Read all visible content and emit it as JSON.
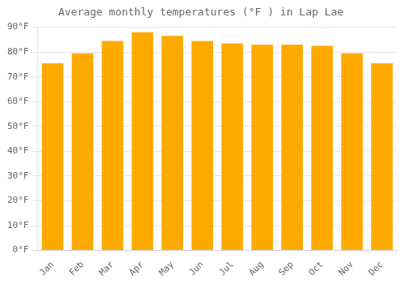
{
  "chart_data": {
    "type": "bar",
    "title": "Average monthly temperatures (°F ) in Lap Lae",
    "categories": [
      "Jan",
      "Feb",
      "Mar",
      "Apr",
      "May",
      "Jun",
      "Jul",
      "Aug",
      "Sep",
      "Oct",
      "Nov",
      "Dec"
    ],
    "values": [
      75.5,
      79.5,
      84.5,
      88.0,
      86.5,
      84.5,
      83.5,
      83.0,
      83.0,
      82.5,
      79.5,
      75.5
    ],
    "color": "#FFAA00",
    "ylim": [
      0,
      90
    ],
    "yticks": [
      {
        "value": 0,
        "label": "0°F"
      },
      {
        "value": 10,
        "label": "10°F"
      },
      {
        "value": 20,
        "label": "20°F"
      },
      {
        "value": 30,
        "label": "30°F"
      },
      {
        "value": 40,
        "label": "40°F"
      },
      {
        "value": 50,
        "label": "50°F"
      },
      {
        "value": 60,
        "label": "60°F"
      },
      {
        "value": 70,
        "label": "70°F"
      },
      {
        "value": 80,
        "label": "80°F"
      },
      {
        "value": 90,
        "label": "90°F"
      }
    ],
    "grid": true
  }
}
